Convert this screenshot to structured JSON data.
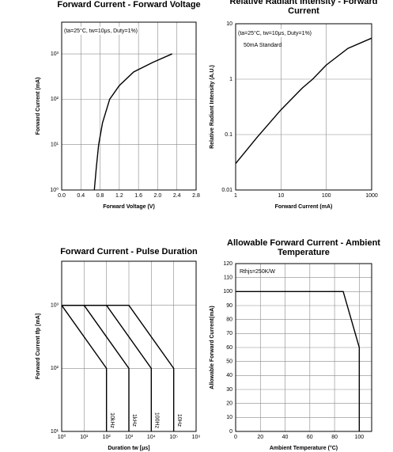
{
  "chart_data": [
    {
      "type": "line",
      "title": "Forward Current - Forward Voltage",
      "x_label": "Forward Voltage (V)",
      "y_label": "Forward Current (mA)",
      "annotations": [
        "(ta=25°C, tw=10μs, Duty=1%)"
      ],
      "xlim": [
        0,
        2.8
      ],
      "xticks": [
        {
          "value": 0,
          "label": "0.0"
        },
        0.4,
        0.8,
        1.2,
        1.6,
        {
          "value": 2,
          "label": "2.0"
        },
        2.4,
        2.8
      ],
      "ylim": [
        1,
        5000
      ],
      "y_log": true,
      "yticks": [
        {
          "value": 1,
          "label": "10⁰"
        },
        {
          "value": 10,
          "label": "10¹"
        },
        {
          "value": 100,
          "label": "10²"
        },
        {
          "value": 1000,
          "label": "10³"
        }
      ],
      "grid": true,
      "series": [
        {
          "color": "#000000",
          "x": [
            0.68,
            0.72,
            0.77,
            0.85,
            1.0,
            1.2,
            1.5,
            1.9,
            2.3
          ],
          "values": [
            1,
            3,
            10,
            30,
            100,
            200,
            400,
            650,
            1000
          ]
        }
      ]
    },
    {
      "type": "line",
      "title": "Relative Radiant Intensity - Forward Current",
      "x_label": "Forward Current (mA)",
      "y_label": "Relative Radiant Intensity (A.U.)",
      "annotations": [
        "(ta=25°C, tw=10μs, Duty=1%)",
        "50mA Standard"
      ],
      "xlim": [
        1,
        1000
      ],
      "x_log": true,
      "xticks": [
        1,
        10,
        100,
        1000
      ],
      "ylim": [
        0.01,
        10
      ],
      "y_log": true,
      "yticks": [
        0.01,
        0.1,
        1,
        10
      ],
      "grid": true,
      "series": [
        {
          "color": "#000000",
          "x": [
            1,
            3,
            10,
            30,
            50,
            100,
            300,
            1000
          ],
          "values": [
            0.03,
            0.09,
            0.28,
            0.7,
            1,
            1.8,
            3.6,
            5.5
          ]
        }
      ]
    },
    {
      "type": "line",
      "title": "Forward Current - Pulse Duration",
      "x_label": "Duration tw [μs]",
      "y_label": "Forward Current Ifp [mA]",
      "annotations": [],
      "xlim": [
        1,
        1000000
      ],
      "x_log": true,
      "xticks": [
        {
          "value": 1,
          "label": "10⁰"
        },
        {
          "value": 10,
          "label": "10¹"
        },
        {
          "value": 100,
          "label": "10²"
        },
        {
          "value": 1000,
          "label": "10³"
        },
        {
          "value": 10000,
          "label": "10⁴"
        },
        {
          "value": 100000,
          "label": "10⁵"
        },
        {
          "value": 1000000,
          "label": "10⁶"
        }
      ],
      "ylim": [
        10,
        5000
      ],
      "y_log": true,
      "yticks": [
        {
          "value": 10,
          "label": "10¹"
        },
        {
          "value": 100,
          "label": "10²"
        },
        {
          "value": 1000,
          "label": "10³"
        }
      ],
      "grid": true,
      "series": [
        {
          "name": "10kHz",
          "color": "#000000",
          "x": [
            1,
            100,
            100
          ],
          "values": [
            1000,
            100,
            10
          ]
        },
        {
          "name": "1kHz",
          "color": "#000000",
          "x": [
            1,
            10,
            1000,
            1000
          ],
          "values": [
            1000,
            1000,
            100,
            10
          ]
        },
        {
          "name": "100Hz",
          "color": "#000000",
          "x": [
            1,
            100,
            10000,
            10000
          ],
          "values": [
            1000,
            1000,
            100,
            10
          ]
        },
        {
          "name": "10Hz",
          "color": "#000000",
          "x": [
            1,
            1000,
            100000,
            100000
          ],
          "values": [
            1000,
            1000,
            100,
            10
          ]
        }
      ]
    },
    {
      "type": "line",
      "title": "Allowable Forward Current - Ambient Temperature",
      "x_label": "Ambient Temperature (°C)",
      "y_label": "Allowable Forward Current(mA)",
      "annotations": [
        "Rthjs=250K/W"
      ],
      "xlim": [
        0,
        110
      ],
      "xticks": [
        0,
        20,
        40,
        60,
        80,
        100
      ],
      "ylim": [
        0,
        120
      ],
      "yticks": [
        0,
        10,
        20,
        30,
        40,
        50,
        60,
        70,
        80,
        90,
        100,
        110,
        120
      ],
      "grid": true,
      "series": [
        {
          "color": "#000000",
          "x": [
            0,
            87,
            100,
            100
          ],
          "values": [
            100,
            100,
            60,
            0
          ]
        }
      ]
    }
  ]
}
